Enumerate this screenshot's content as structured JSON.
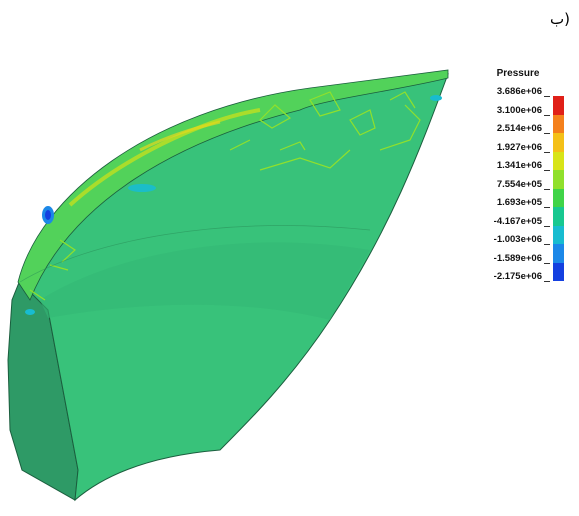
{
  "figure": {
    "label": "ب)"
  },
  "legend": {
    "title": "Pressure",
    "values": [
      "3.686e+06",
      "3.100e+06",
      "2.514e+06",
      "1.927e+06",
      "1.341e+06",
      "7.554e+05",
      "1.693e+05",
      "-4.167e+05",
      "-1.003e+06",
      "-1.589e+06",
      "-2.175e+06"
    ],
    "colors": [
      "#e02018",
      "#f4801c",
      "#f4c018",
      "#d8e418",
      "#90e02c",
      "#40d448",
      "#18c890",
      "#18bcd0",
      "#1c88e8",
      "#1440e0"
    ]
  },
  "render": {
    "subject": "pressure contour plot on a curved blade section"
  }
}
